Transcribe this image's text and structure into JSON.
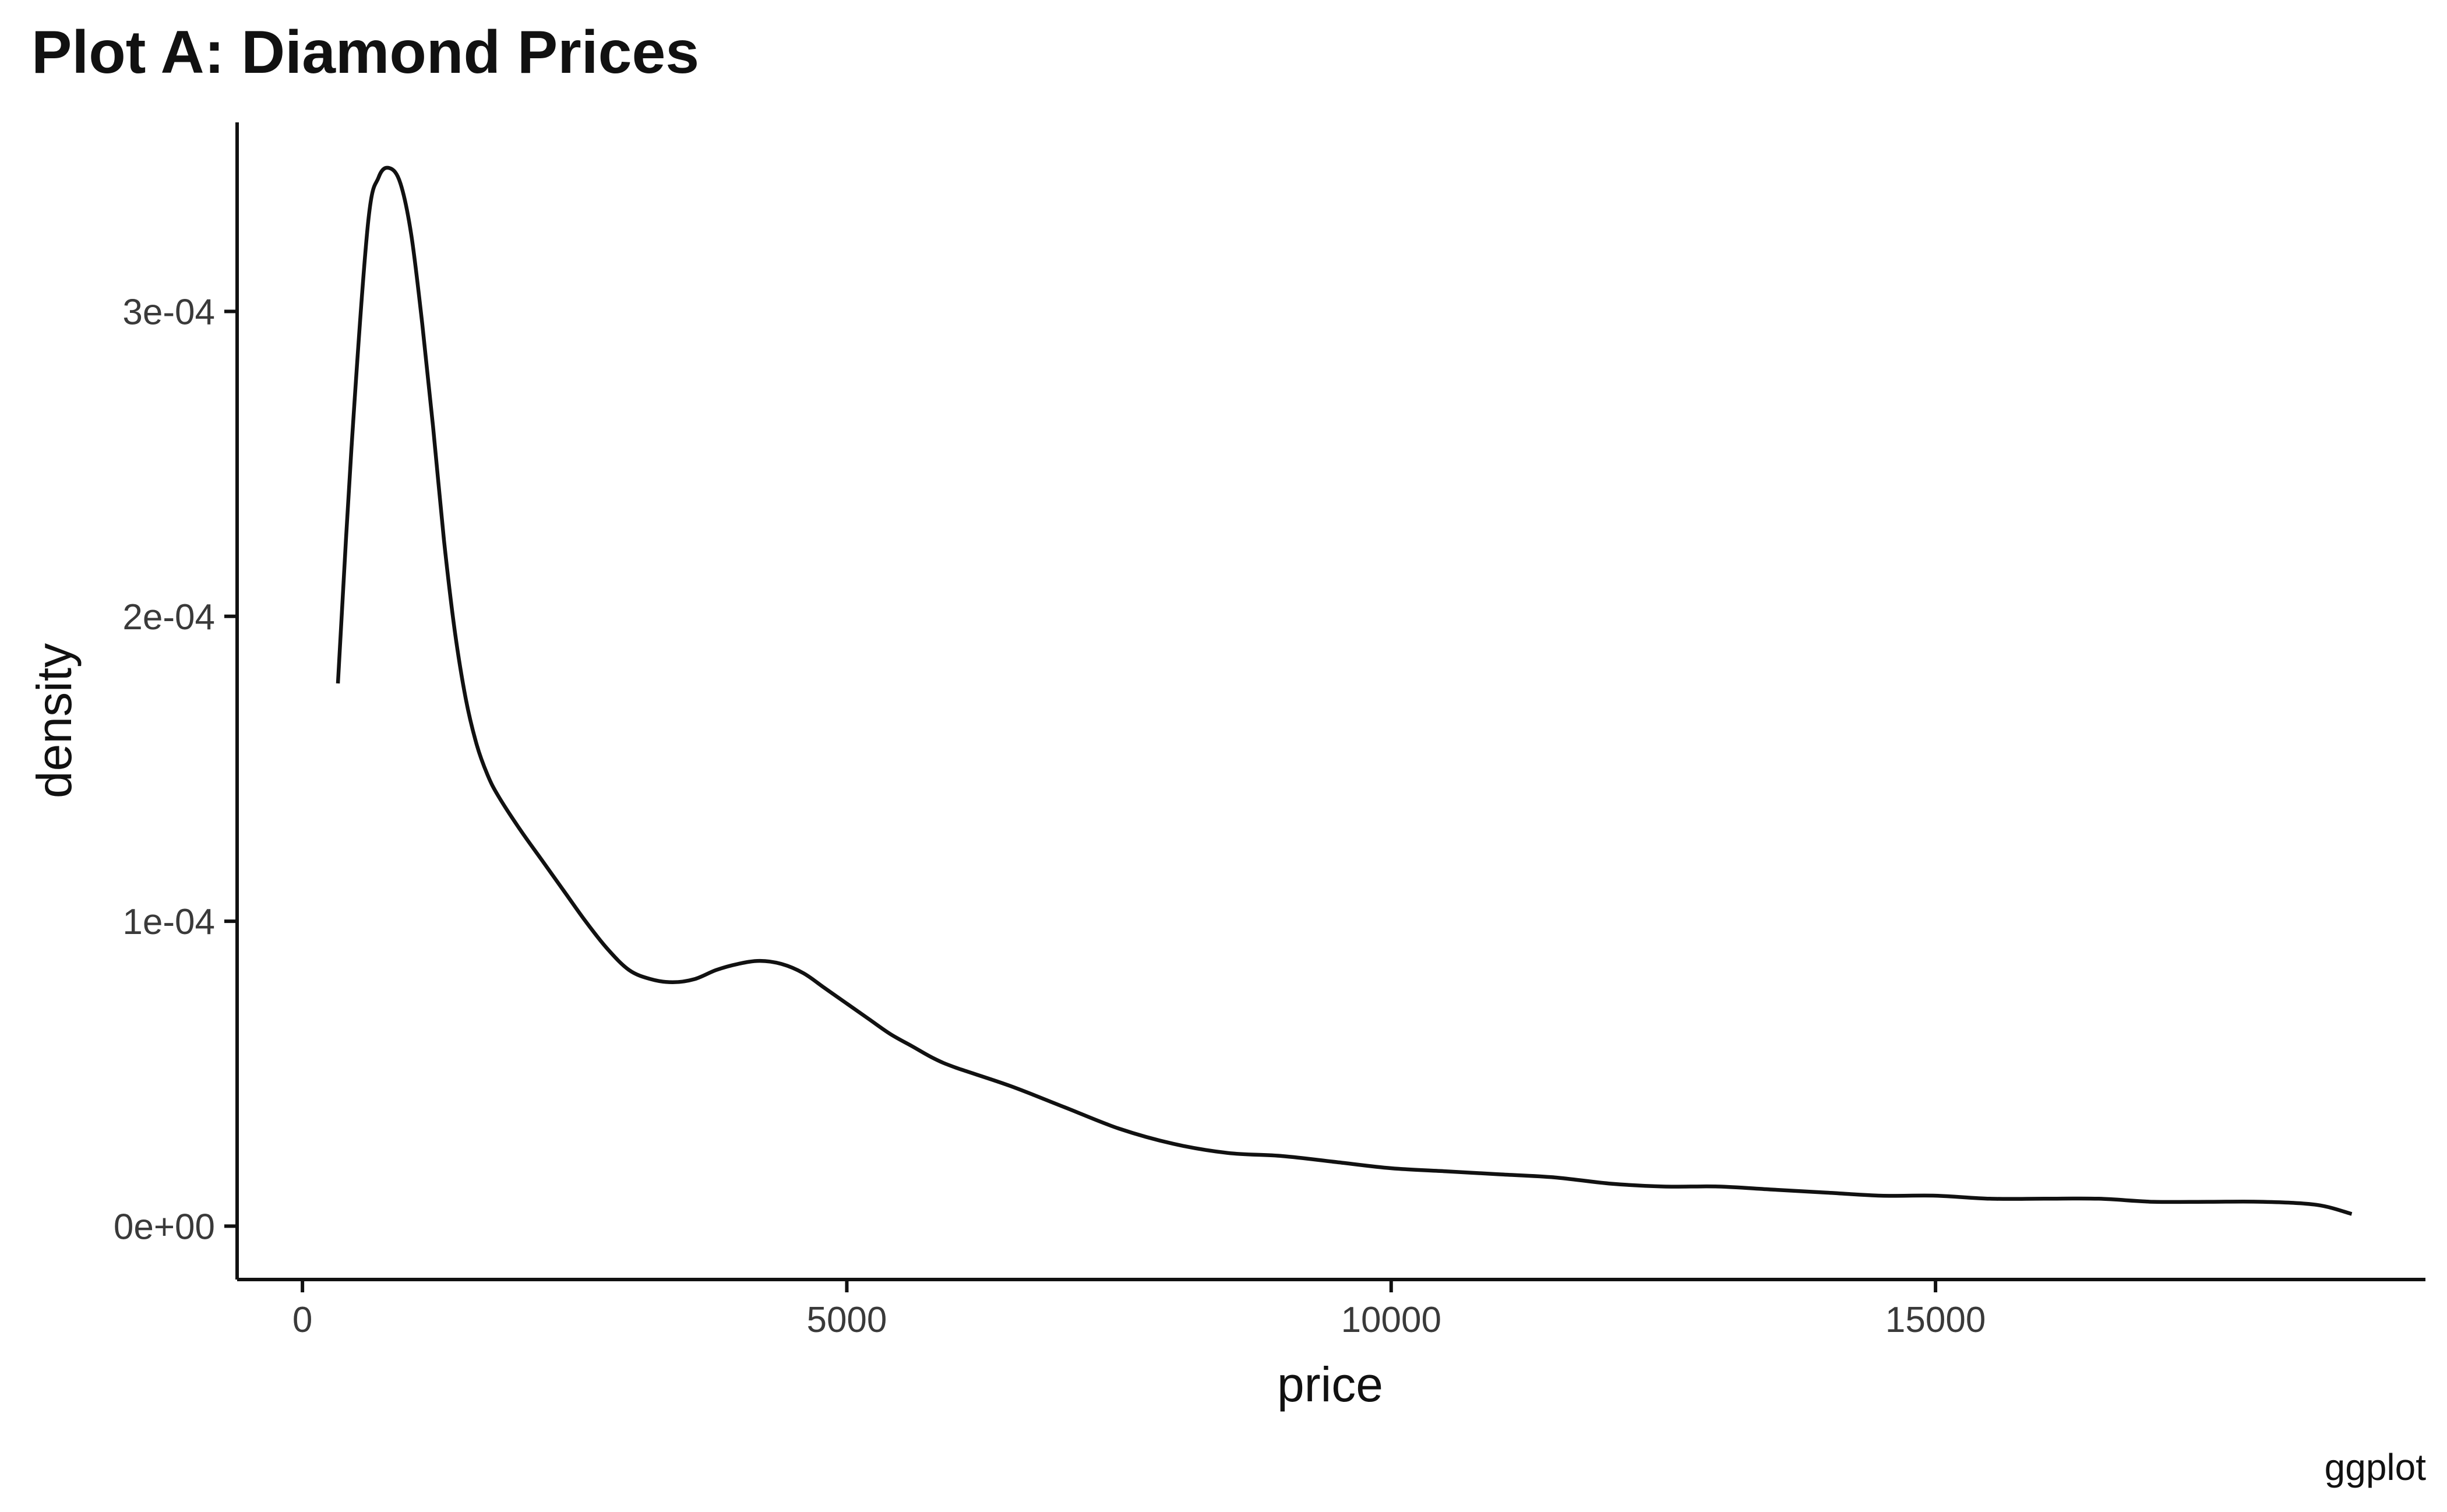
{
  "chart_data": {
    "type": "line",
    "title": "Plot A: Diamond Prices",
    "xlabel": "price",
    "ylabel": "density",
    "caption": "ggplot",
    "xlim": [
      -600,
      19500
    ],
    "ylim": [
      -1.75e-05,
      0.000362
    ],
    "x_ticks": [
      0,
      5000,
      10000,
      15000
    ],
    "x_tick_labels": [
      "0",
      "5000",
      "10000",
      "15000"
    ],
    "y_ticks": [
      0,
      0.0001,
      0.0002,
      0.0003
    ],
    "y_tick_labels": [
      "0e+00",
      "1e-04",
      "2e-04",
      "3e-04"
    ],
    "grid": false,
    "legend": "none",
    "colors": {
      "line": "#111111",
      "axis": "#111111",
      "background": "#ffffff"
    },
    "series": [
      {
        "x": [
          326,
          450,
          600,
          700,
          800,
          900,
          1000,
          1100,
          1200,
          1300,
          1400,
          1500,
          1600,
          1700,
          1800,
          2000,
          2200,
          2400,
          2600,
          2800,
          3000,
          3200,
          3400,
          3600,
          3800,
          4000,
          4200,
          4400,
          4600,
          4800,
          5000,
          5200,
          5400,
          5600,
          5800,
          6000,
          6500,
          7000,
          7500,
          8000,
          8500,
          9000,
          9500,
          10000,
          10500,
          11000,
          11500,
          12000,
          12500,
          13000,
          13500,
          14000,
          14500,
          15000,
          15500,
          16000,
          16500,
          17000,
          17500,
          18000,
          18500,
          18823
        ],
        "y": [
          0.000178,
          0.000255,
          0.000328,
          0.000344,
          0.000347,
          0.000342,
          0.000325,
          0.000296,
          0.000262,
          0.000225,
          0.000195,
          0.000173,
          0.000158,
          0.000148,
          0.000141,
          0.00013,
          0.00012,
          0.00011,
          0.0001,
          9.1e-05,
          8.4e-05,
          8.1e-05,
          8e-05,
          8.1e-05,
          8.4e-05,
          8.6e-05,
          8.7e-05,
          8.6e-05,
          8.3e-05,
          7.8e-05,
          7.3e-05,
          6.8e-05,
          6.3e-05,
          5.9e-05,
          5.5e-05,
          5.2e-05,
          4.6e-05,
          3.9e-05,
          3.2e-05,
          2.7e-05,
          2.4e-05,
          2.3e-05,
          2.1e-05,
          1.9e-05,
          1.8e-05,
          1.7e-05,
          1.6e-05,
          1.4e-05,
          1.3e-05,
          1.3e-05,
          1.2e-05,
          1.1e-05,
          1e-05,
          1e-05,
          9e-06,
          9e-06,
          9e-06,
          8e-06,
          8e-06,
          8e-06,
          7e-06,
          4e-06
        ]
      }
    ]
  }
}
